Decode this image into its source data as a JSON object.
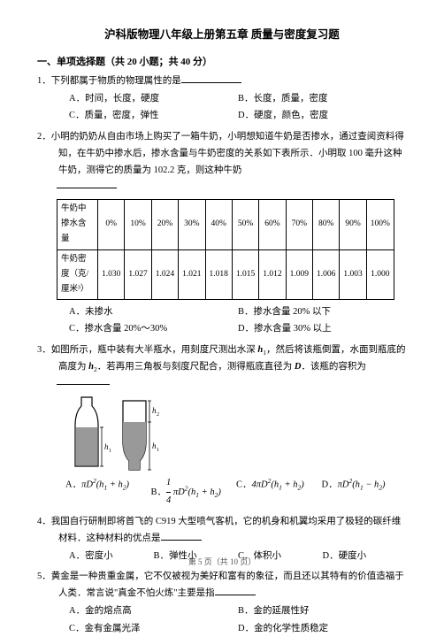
{
  "title": "沪科版物理八年级上册第五章 质量与密度复习题",
  "section": "一、单项选择题（共 20 小题；共 40 分）",
  "q1": {
    "stem_prefix": "1．下列都属于物质的物理属性的是",
    "A": "A．时间，长度，硬度",
    "B": "B．长度，质量，密度",
    "C": "C．质量，密度，弹性",
    "D": "D．硬度，颜色，密度"
  },
  "q2": {
    "stem": "2．小明的奶奶从自由市场上购买了一箱牛奶，小明想知道牛奶是否掺水，通过查阅资料得知，在牛奶中掺水后，掺水含量与牛奶密度的关系如下表所示．小明取 100 毫升这种牛奶，测得它的质量为 102.2 克，则这种牛奶",
    "row1head": "牛奶中掺水含量",
    "row2head": "牛奶密度（克/厘米³）",
    "cols": [
      "0%",
      "10%",
      "20%",
      "30%",
      "40%",
      "50%",
      "60%",
      "70%",
      "80%",
      "90%",
      "100%"
    ],
    "dens": [
      "1.030",
      "1.027",
      "1.024",
      "1.021",
      "1.018",
      "1.015",
      "1.012",
      "1.009",
      "1.006",
      "1.003",
      "1.000"
    ],
    "A": "A．未掺水",
    "B": "B．掺水含量 20% 以下",
    "C": "C．掺水含量 20%～30%",
    "D": "D．掺水含量 30% 以上"
  },
  "q3": {
    "stem": "3．如图所示，瓶中装有大半瓶水，用刻度尺测出水深 <span class='bold-it'>h</span><sub>1</sub>，然后将该瓶倒置，水面到瓶底的高度为 <span class='bold-it'>h</span><sub>2</sub>．若再用三角板与刻度尺配合，测得瓶底直径为 <span class='bold-it'>D</span>．该瓶的容积为",
    "A": "<span class='lab'>A．</span>πD<sup>2</sup>(h<sub>1</sub> + h<sub>2</sub>)",
    "B": "<span class='lab'>B．</span><span style='display:inline-block;text-align:center;vertical-align:middle;'><span style='display:block;border-bottom:1px solid #000;'>1</span><span>4</span></span> πD<sup>2</sup>(h<sub>1</sub> + h<sub>2</sub>)",
    "C": "<span class='lab'>C．</span>4πD<sup>2</sup>(h<sub>1</sub> + h<sub>2</sub>)",
    "D": "<span class='lab'>D．</span>πD<sup>2</sup>(h<sub>1</sub> − h<sub>2</sub>)"
  },
  "q4": {
    "stem": "4．我国自行研制即将首飞的 C919 大型喷气客机，它的机身和机翼均采用了极轻的碳纤维材料．这种材料的优点是",
    "A": "A．密度小",
    "B": "B．弹性小",
    "C": "C．体积小",
    "D": "D．硬度小"
  },
  "q5": {
    "stem": "5．黄金是一种贵重金属，它不仅被视为美好和富有的象征，而且还以其特有的价值造福于人类．常言说\"真金不怕火炼\"主要是指",
    "A": "A．金的熔点高",
    "B": "B．金的延展性好",
    "C": "C．金有金属光泽",
    "D": "D．金的化学性质稳定"
  },
  "footer": "第 5 页（共 10 页）"
}
